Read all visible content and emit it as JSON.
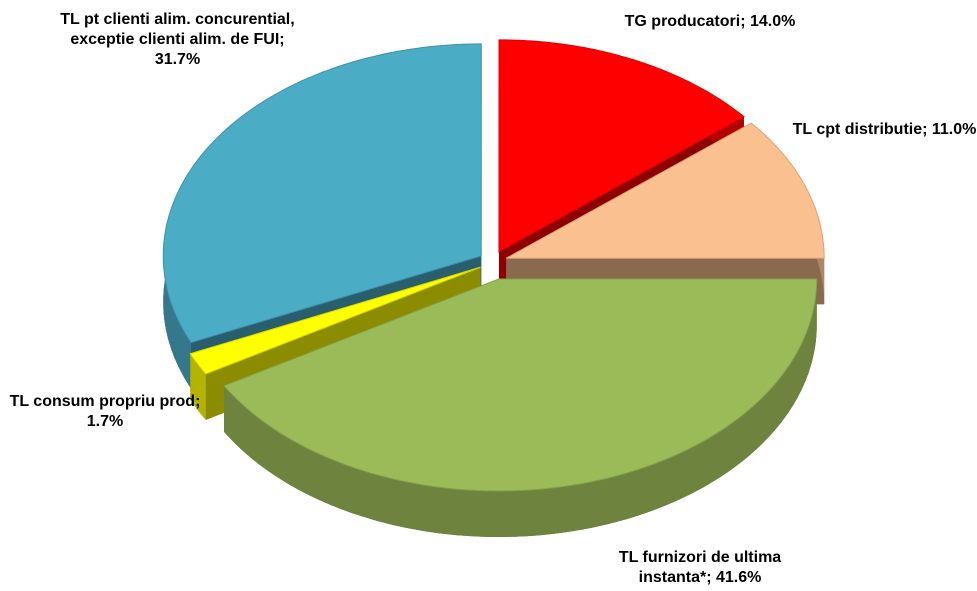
{
  "chart_data": {
    "type": "pie3d",
    "categories": [
      "TG producatori;",
      "TL cpt distributie;",
      "TL furnizori de ultima instanta*;",
      "TL consum propriu prod;",
      "TL pt clienti alim. concurential, exceptie clienti alim. de FUI;"
    ],
    "values": [
      14.0,
      11.0,
      41.6,
      1.7,
      31.7
    ],
    "value_labels": [
      "14.0%",
      "11.0%",
      "41.6%",
      "1.7%",
      "31.7%"
    ],
    "colors": [
      "#ff0000",
      "#fac090",
      "#9bbb59",
      "#ffff00",
      "#4bacc6"
    ]
  }
}
